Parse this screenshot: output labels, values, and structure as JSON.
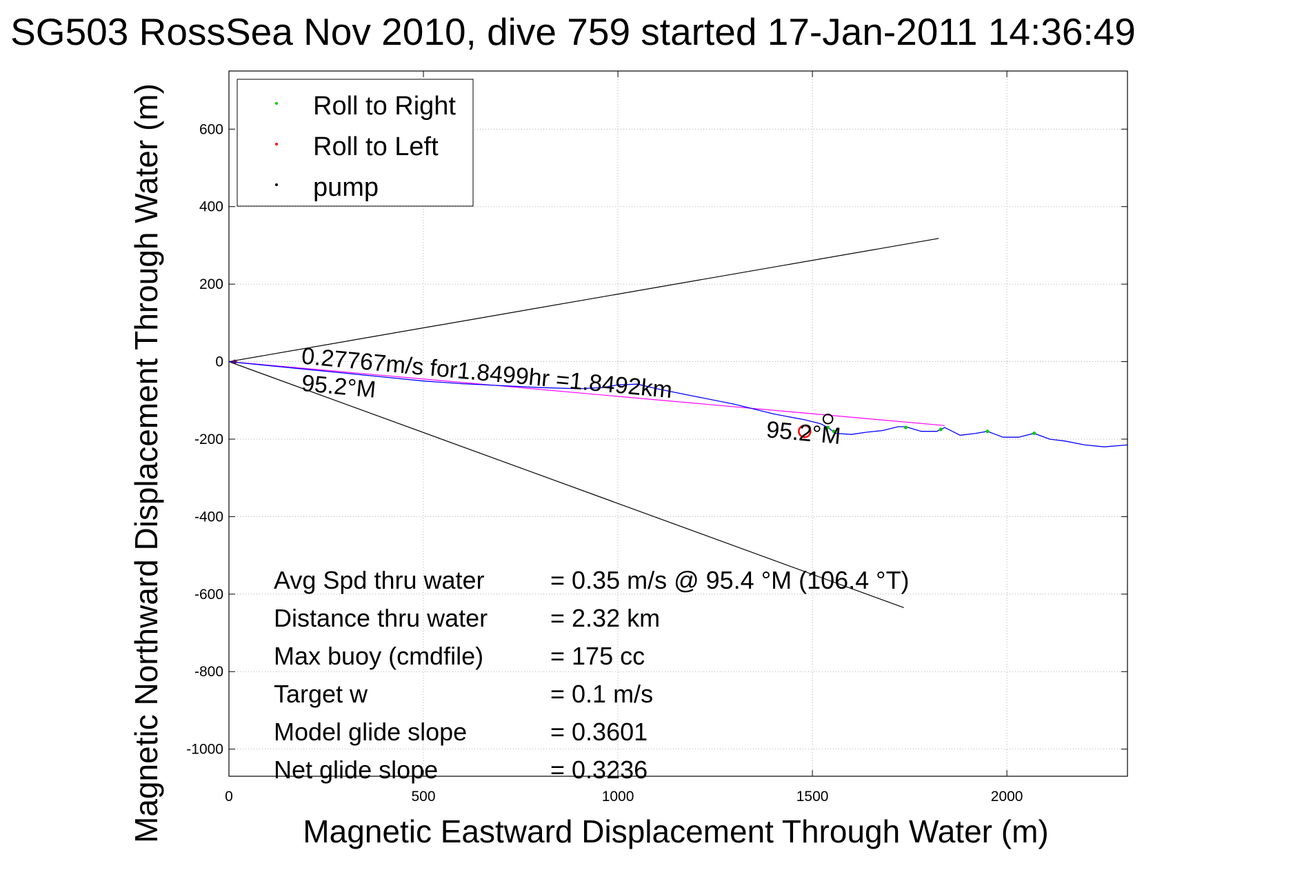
{
  "chart_data": {
    "type": "line",
    "title": "SG503 RossSea Nov 2010, dive 759 started 17-Jan-2011 14:36:49",
    "xlabel": "Magnetic Eastward Displacement Through Water (m)",
    "ylabel": "Magnetic Northward Displacement Through Water (m)",
    "xlim": [
      0,
      2310
    ],
    "ylim": [
      -1070,
      750
    ],
    "xticks": [
      0,
      500,
      1000,
      1500,
      2000
    ],
    "xtick_labels": [
      "0",
      "500",
      "1000",
      "1500",
      "2000"
    ],
    "yticks": [
      600,
      400,
      200,
      0,
      -200,
      -400,
      -600,
      -800,
      -1000
    ],
    "ytick_labels": [
      "600",
      "400",
      "200",
      "0",
      "-200",
      "-400",
      "-600",
      "-800",
      "-1000"
    ],
    "grid": true,
    "legend_position": "top-left",
    "legend": [
      {
        "label": "Roll to Right",
        "color": "#00cc00"
      },
      {
        "label": "Roll to Left",
        "color": "#ff0000"
      },
      {
        "label": "pump",
        "color": "#000000"
      }
    ],
    "colors": {
      "track": "#0000ff",
      "course": "#ff00ff",
      "cone": "#000000",
      "roll_right": "#00cc00",
      "roll_left": "#ff0000",
      "pump": "#000000"
    },
    "track": {
      "x": [
        0,
        100,
        200,
        300,
        400,
        500,
        600,
        700,
        800,
        900,
        960,
        1000,
        1050,
        1100,
        1200,
        1300,
        1400,
        1480,
        1520,
        1540,
        1560,
        1600,
        1640,
        1680,
        1720,
        1740,
        1780,
        1820,
        1840,
        1880,
        1920,
        1950,
        1990,
        2030,
        2070,
        2110,
        2150,
        2200,
        2250,
        2310
      ],
      "y": [
        0,
        -10,
        -20,
        -30,
        -40,
        -50,
        -57,
        -62,
        -67,
        -70,
        -67,
        -60,
        -58,
        -70,
        -90,
        -110,
        -135,
        -150,
        -160,
        -170,
        -185,
        -188,
        -182,
        -178,
        -168,
        -168,
        -180,
        -180,
        -170,
        -190,
        -185,
        -180,
        -195,
        -195,
        -185,
        -200,
        -205,
        -215,
        -220,
        -215
      ]
    },
    "course_line": {
      "x": [
        0,
        1840
      ],
      "y": [
        0,
        -165
      ]
    },
    "cone_upper": {
      "x": [
        0,
        1825
      ],
      "y": [
        0,
        318
      ]
    },
    "cone_lower": {
      "x": [
        0,
        1735
      ],
      "y": [
        0,
        -635
      ]
    },
    "roll_right_points": {
      "x": [
        1540,
        1555,
        1740,
        1830,
        1950,
        2070
      ],
      "y": [
        -170,
        -180,
        -170,
        -175,
        -180,
        -185
      ]
    },
    "roll_left_loop": {
      "cx": 1480,
      "cy": -180,
      "r": 15
    },
    "pump_loop": {
      "cx": 1540,
      "cy": -148,
      "r": 12
    },
    "annotations": [
      {
        "text": "0.27767m/s for1.8499hr =1.8492km",
        "x": 185,
        "y": -5,
        "rotate": 5.3
      },
      {
        "text": "95.2°M",
        "x": 185,
        "y": -75,
        "rotate": 5.3
      },
      {
        "text": "95.2°M",
        "x": 1380,
        "y": -195,
        "rotate": 5.3
      }
    ],
    "stats": [
      {
        "label": "Avg Spd thru water",
        "value": "=  0.35 m/s @  95.4 °M (106.4 °T)"
      },
      {
        "label": "Distance thru water",
        "value": "=  2.32 km"
      },
      {
        "label": "Max buoy (cmdfile)",
        "value": "= 175 cc"
      },
      {
        "label": "Target w",
        "value": "= 0.1 m/s"
      },
      {
        "label": "Model glide slope",
        "value": "= 0.3601"
      },
      {
        "label": "Net glide slope",
        "value": "= 0.3236"
      }
    ]
  }
}
